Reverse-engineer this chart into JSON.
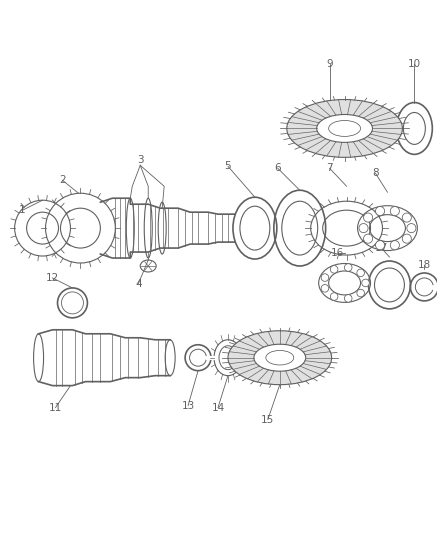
{
  "background_color": "#ffffff",
  "line_color": "#606060",
  "label_color": "#505050",
  "fig_width": 4.38,
  "fig_height": 5.33,
  "dpi": 100
}
